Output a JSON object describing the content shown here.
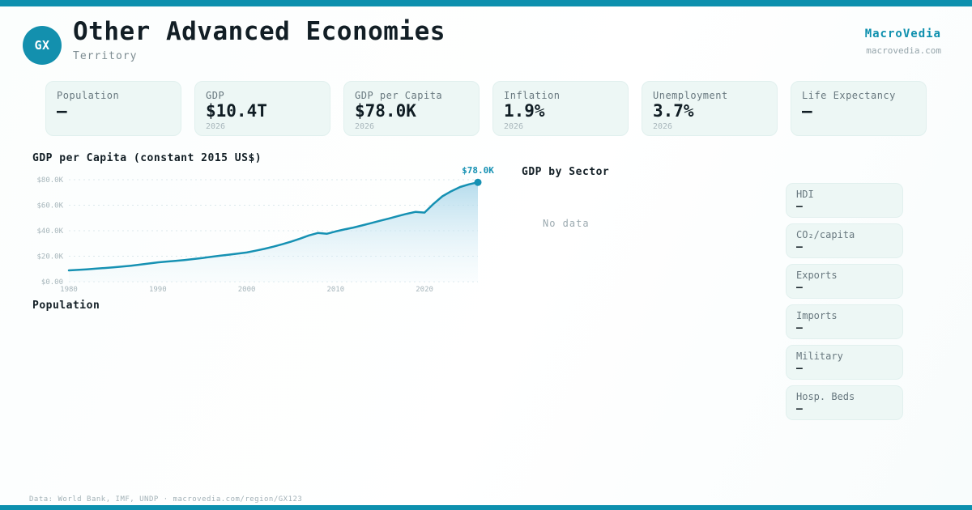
{
  "brand": {
    "name": "MacroVedia",
    "domain": "macrovedia.com",
    "accent_color": "#0d90ae"
  },
  "header": {
    "badge": "GX",
    "title": "Other Advanced Economies",
    "subtitle": "Territory"
  },
  "stats": [
    {
      "label": "Population",
      "value": "—",
      "year": ""
    },
    {
      "label": "GDP",
      "value": "$10.4T",
      "year": "2026"
    },
    {
      "label": "GDP per Capita",
      "value": "$78.0K",
      "year": "2026"
    },
    {
      "label": "Inflation",
      "value": "1.9%",
      "year": "2026"
    },
    {
      "label": "Unemployment",
      "value": "3.7%",
      "year": "2026"
    },
    {
      "label": "Life Expectancy",
      "value": "—",
      "year": ""
    }
  ],
  "sections": {
    "gdp_chart_title": "GDP per Capita (constant 2015 US$)",
    "sector_title": "GDP by Sector",
    "sector_empty": "No data",
    "population_title": "Population"
  },
  "indicators": [
    {
      "label": "HDI",
      "value": "—"
    },
    {
      "label": "CO₂/capita",
      "value": "—"
    },
    {
      "label": "Exports",
      "value": "—"
    },
    {
      "label": "Imports",
      "value": "—"
    },
    {
      "label": "Military",
      "value": "—"
    },
    {
      "label": "Hosp. Beds",
      "value": "—"
    }
  ],
  "footer": {
    "text": "Data: World Bank, IMF, UNDP · macrovedia.com/region/GX123"
  },
  "chart_data": {
    "type": "area",
    "title": "GDP per Capita (constant 2015 US$)",
    "x": [
      1980,
      1981,
      1982,
      1983,
      1984,
      1985,
      1986,
      1987,
      1988,
      1989,
      1990,
      1991,
      1992,
      1993,
      1994,
      1995,
      1996,
      1997,
      1998,
      1999,
      2000,
      2001,
      2002,
      2003,
      2004,
      2005,
      2006,
      2007,
      2008,
      2009,
      2010,
      2011,
      2012,
      2013,
      2014,
      2015,
      2016,
      2017,
      2018,
      2019,
      2020,
      2021,
      2022,
      2023,
      2024,
      2025,
      2026
    ],
    "values": [
      8.9,
      9.3,
      9.7,
      10.2,
      10.7,
      11.3,
      11.9,
      12.6,
      13.4,
      14.3,
      15.2,
      15.8,
      16.4,
      17.0,
      17.8,
      18.6,
      19.5,
      20.4,
      21.2,
      22.0,
      22.9,
      24.3,
      25.8,
      27.5,
      29.4,
      31.5,
      33.8,
      36.3,
      38.2,
      37.6,
      39.4,
      41.0,
      42.5,
      44.2,
      46.0,
      47.8,
      49.6,
      51.5,
      53.3,
      54.8,
      54.2,
      61.0,
      67.0,
      71.0,
      74.3,
      76.4,
      78.0
    ],
    "unit": "USD thousands",
    "ylim": [
      0,
      80
    ],
    "ytick_values": [
      0,
      20,
      40,
      60,
      80
    ],
    "yticks": [
      "$0.00",
      "$20.0K",
      "$40.0K",
      "$60.0K",
      "$80.0K"
    ],
    "xticks": [
      1980,
      1990,
      2000,
      2010,
      2020
    ],
    "end_label": "$78.0K",
    "line_color": "#1691b3",
    "grid": true,
    "legend": false
  }
}
